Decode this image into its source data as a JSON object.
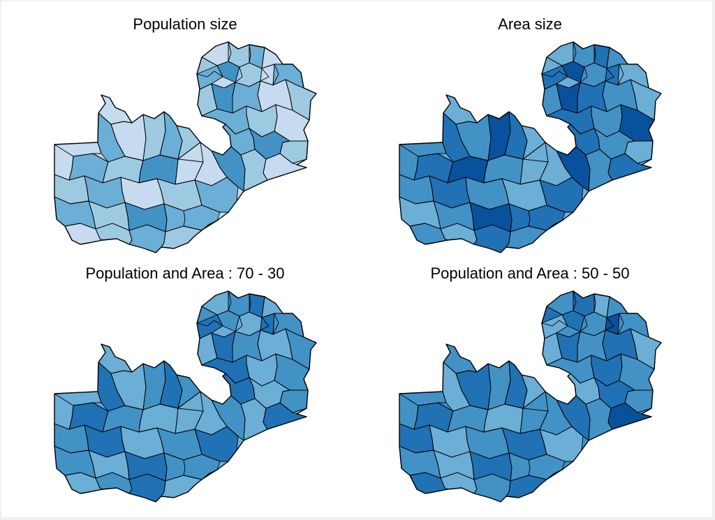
{
  "figure": {
    "panels": [
      {
        "title": "Population size",
        "shades": [
          "#c6dbef",
          "#9ecae1",
          "#6baed6",
          "#c6dbef",
          "#9ecae1",
          "#6baed6",
          "#4292c6",
          "#9ecae1",
          "#c6dbef",
          "#6baed6",
          "#9ecae1",
          "#4292c6",
          "#6baed6",
          "#c6dbef",
          "#9ecae1",
          "#6baed6",
          "#9ecae1",
          "#c6dbef",
          "#6baed6",
          "#4292c6",
          "#9ecae1",
          "#6baed6",
          "#c6dbef",
          "#9ecae1",
          "#6baed6",
          "#9ecae1",
          "#c6dbef",
          "#6baed6",
          "#9ecae1",
          "#4292c6"
        ]
      },
      {
        "title": "Area size",
        "shades": [
          "#6baed6",
          "#4292c6",
          "#2171b5",
          "#4292c6",
          "#6baed6",
          "#2171b5",
          "#08519c",
          "#4292c6",
          "#2171b5",
          "#6baed6",
          "#4292c6",
          "#08519c",
          "#2171b5",
          "#4292c6",
          "#6baed6",
          "#2171b5",
          "#4292c6",
          "#08519c",
          "#2171b5",
          "#4292c6",
          "#6baed6",
          "#2171b5",
          "#4292c6",
          "#08519c",
          "#2171b5",
          "#6baed6",
          "#4292c6",
          "#2171b5",
          "#08519c",
          "#4292c6"
        ]
      },
      {
        "title": "Population and Area : 70 - 30",
        "shades": [
          "#6baed6",
          "#4292c6",
          "#2171b5",
          "#6baed6",
          "#4292c6",
          "#2171b5",
          "#4292c6",
          "#6baed6",
          "#2171b5",
          "#4292c6",
          "#6baed6",
          "#2171b5",
          "#4292c6",
          "#6baed6",
          "#4292c6",
          "#2171b5",
          "#6baed6",
          "#4292c6",
          "#2171b5",
          "#6baed6",
          "#4292c6",
          "#2171b5",
          "#6baed6",
          "#4292c6",
          "#2171b5",
          "#4292c6",
          "#6baed6",
          "#2171b5",
          "#4292c6",
          "#6baed6"
        ]
      },
      {
        "title": "Population and Area : 50 - 50",
        "shades": [
          "#4292c6",
          "#2171b5",
          "#6baed6",
          "#4292c6",
          "#2171b5",
          "#6baed6",
          "#2171b5",
          "#4292c6",
          "#08519c",
          "#4292c6",
          "#6baed6",
          "#2171b5",
          "#4292c6",
          "#2171b5",
          "#6baed6",
          "#4292c6",
          "#2171b5",
          "#4292c6",
          "#6baed6",
          "#2171b5",
          "#4292c6",
          "#6baed6",
          "#2171b5",
          "#4292c6",
          "#2171b5",
          "#6baed6",
          "#4292c6",
          "#2171b5",
          "#4292c6",
          "#6baed6"
        ]
      }
    ]
  }
}
